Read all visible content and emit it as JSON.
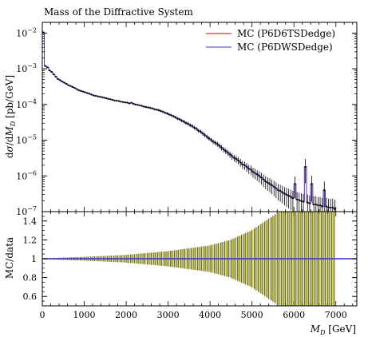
{
  "chart_data": [
    {
      "type": "scatter",
      "title": "Mass of the Diffractive System",
      "xlabel": "",
      "ylabel": "dσ/dM_D [pb/GeV]",
      "ylabel_parts": [
        "d",
        "σ",
        "/d",
        "M",
        "D",
        " [pb/GeV]"
      ],
      "ylog": true,
      "xlim": [
        0,
        7500
      ],
      "ylim": [
        1e-07,
        0.02
      ],
      "y_ticks": [
        {
          "v": 1e-07,
          "base": "10",
          "exp": "−7"
        },
        {
          "v": 1e-06,
          "base": "10",
          "exp": "−6"
        },
        {
          "v": 1e-05,
          "base": "10",
          "exp": "−5"
        },
        {
          "v": 0.0001,
          "base": "10",
          "exp": "−4"
        },
        {
          "v": 0.001,
          "base": "10",
          "exp": "−3"
        },
        {
          "v": 0.01,
          "base": "10",
          "exp": "−2"
        }
      ],
      "legend_position": "top-right",
      "series": [
        {
          "name": "MC (P6D6TSDedge)",
          "color": "#cc0000"
        },
        {
          "name": "MC (P6DWSDedge)",
          "color": "#3a33cc"
        }
      ],
      "points": [
        [
          25,
          0.0105
        ],
        [
          75,
          0.0012
        ],
        [
          125,
          0.0011
        ],
        [
          175,
          0.0009
        ],
        [
          225,
          0.00082
        ],
        [
          275,
          0.0007
        ],
        [
          325,
          0.0006
        ],
        [
          375,
          0.00052
        ],
        [
          425,
          0.00048
        ],
        [
          475,
          0.00044
        ],
        [
          525,
          0.00041
        ],
        [
          575,
          0.00038
        ],
        [
          625,
          0.00035
        ],
        [
          675,
          0.00033
        ],
        [
          725,
          0.00031
        ],
        [
          775,
          0.00029
        ],
        [
          825,
          0.00027
        ],
        [
          875,
          0.00025
        ],
        [
          925,
          0.00024
        ],
        [
          975,
          0.00023
        ],
        [
          1025,
          0.00022
        ],
        [
          1075,
          0.00021
        ],
        [
          1125,
          0.0002
        ],
        [
          1175,
          0.00019
        ],
        [
          1225,
          0.00018
        ],
        [
          1275,
          0.000175
        ],
        [
          1325,
          0.00017
        ],
        [
          1375,
          0.000165
        ],
        [
          1425,
          0.00016
        ],
        [
          1475,
          0.000155
        ],
        [
          1525,
          0.00015
        ],
        [
          1575,
          0.000145
        ],
        [
          1625,
          0.00014
        ],
        [
          1675,
          0.000135
        ],
        [
          1725,
          0.00013
        ],
        [
          1775,
          0.000128
        ],
        [
          1825,
          0.000125
        ],
        [
          1875,
          0.00012
        ],
        [
          1925,
          0.000118
        ],
        [
          1975,
          0.000115
        ],
        [
          2025,
          0.000113
        ],
        [
          2075,
          0.000108
        ],
        [
          2125,
          0.000112
        ],
        [
          2175,
          0.000105
        ],
        [
          2225,
          0.0001
        ],
        [
          2275,
          9.8e-05
        ],
        [
          2325,
          9.5e-05
        ],
        [
          2375,
          9.2e-05
        ],
        [
          2425,
          8.75e-05
        ],
        [
          2475,
          8.5e-05
        ],
        [
          2525,
          8.3e-05
        ],
        [
          2575,
          8.05e-05
        ],
        [
          2625,
          7.8e-05
        ],
        [
          2675,
          7.4e-05
        ],
        [
          2725,
          7.2e-05
        ],
        [
          2775,
          6.95e-05
        ],
        [
          2825,
          6.6e-05
        ],
        [
          2875,
          6.3e-05
        ],
        [
          2925,
          5.9e-05
        ],
        [
          2975,
          5.65e-05
        ],
        [
          3025,
          5.3e-05
        ],
        [
          3075,
          5e-05
        ],
        [
          3125,
          4.7e-05
        ],
        [
          3175,
          4.4e-05
        ],
        [
          3225,
          4.05e-05
        ],
        [
          3275,
          3.85e-05
        ],
        [
          3325,
          3.55e-05
        ],
        [
          3375,
          3.35e-05
        ],
        [
          3425,
          3.05e-05
        ],
        [
          3475,
          2.9e-05
        ],
        [
          3525,
          2.65e-05
        ],
        [
          3575,
          2.5e-05
        ],
        [
          3625,
          2.25e-05
        ],
        [
          3675,
          2.1e-05
        ],
        [
          3725,
          1.85e-05
        ],
        [
          3775,
          1.75e-05
        ],
        [
          3825,
          1.55e-05
        ],
        [
          3875,
          1.4e-05
        ],
        [
          3925,
          1.25e-05
        ],
        [
          3975,
          1.13e-05
        ],
        [
          4025,
          1.02e-05
        ],
        [
          4075,
          9.1e-06
        ],
        [
          4125,
          8.5e-06
        ],
        [
          4175,
          7.8e-06
        ],
        [
          4225,
          7e-06
        ],
        [
          4275,
          6.2e-06
        ],
        [
          4325,
          5.5e-06
        ],
        [
          4375,
          5e-06
        ],
        [
          4425,
          4.5e-06
        ],
        [
          4475,
          4e-06
        ],
        [
          4525,
          3.6e-06
        ],
        [
          4575,
          3.2e-06
        ],
        [
          4625,
          3e-06
        ],
        [
          4675,
          2.7e-06
        ],
        [
          4725,
          2.4e-06
        ],
        [
          4775,
          2.1e-06
        ],
        [
          4825,
          2e-06
        ],
        [
          4875,
          1.8e-06
        ],
        [
          4925,
          1.6e-06
        ],
        [
          4975,
          1.5e-06
        ],
        [
          5025,
          1.3e-06
        ],
        [
          5075,
          1.2e-06
        ],
        [
          5125,
          1.1e-06
        ],
        [
          5175,
          1e-06
        ],
        [
          5225,
          9e-07
        ],
        [
          5275,
          8e-07
        ],
        [
          5325,
          7e-07
        ],
        [
          5375,
          6.5e-07
        ],
        [
          5425,
          6e-07
        ],
        [
          5475,
          5.5e-07
        ],
        [
          5525,
          5e-07
        ],
        [
          5575,
          4.5e-07
        ],
        [
          5625,
          4e-07
        ],
        [
          5675,
          3.8e-07
        ],
        [
          5725,
          3.5e-07
        ],
        [
          5775,
          3.2e-07
        ],
        [
          5825,
          3e-07
        ],
        [
          5875,
          2.8e-07
        ],
        [
          5925,
          2.6e-07
        ],
        [
          5975,
          2.4e-07
        ],
        [
          6025,
          6e-07
        ],
        [
          6075,
          2.2e-07
        ],
        [
          6125,
          2.1e-07
        ],
        [
          6175,
          2e-07
        ],
        [
          6225,
          1.9e-07
        ],
        [
          6275,
          1.8e-06
        ],
        [
          6325,
          1.8e-07
        ],
        [
          6375,
          1.7e-07
        ],
        [
          6425,
          6e-07
        ],
        [
          6475,
          1.6e-07
        ],
        [
          6525,
          1.6e-07
        ],
        [
          6575,
          1.5e-07
        ],
        [
          6625,
          1.5e-07
        ],
        [
          6675,
          1.4e-07
        ],
        [
          6725,
          4e-07
        ],
        [
          6775,
          1.4e-07
        ],
        [
          6825,
          1.3e-07
        ],
        [
          6875,
          1.3e-07
        ],
        [
          6925,
          1.3e-07
        ],
        [
          6975,
          1.2e-07
        ]
      ]
    },
    {
      "type": "bar",
      "xlabel_parts": [
        "M",
        "D",
        " [GeV]"
      ],
      "ylabel": "MC/data",
      "xlim": [
        0,
        7500
      ],
      "ylim": [
        0.5,
        1.5
      ],
      "x_ticks": [
        0,
        1000,
        2000,
        3000,
        4000,
        5000,
        6000,
        7000
      ],
      "y_ticks": [
        0.6,
        0.8,
        1,
        1.2,
        1.4
      ],
      "band_color": "#cccc33",
      "ratio_line_color": "#3a33cc",
      "ratio_value": 1.0,
      "bin_width": 50,
      "x_start": 25,
      "x_end": 6975,
      "uncertainty_curve": [
        [
          0,
          0.004
        ],
        [
          1000,
          0.02
        ],
        [
          2000,
          0.04
        ],
        [
          3000,
          0.08
        ],
        [
          4000,
          0.14
        ],
        [
          4500,
          0.2
        ],
        [
          5000,
          0.3
        ],
        [
          5500,
          0.45
        ],
        [
          6000,
          0.6
        ],
        [
          7000,
          0.8
        ]
      ]
    }
  ]
}
